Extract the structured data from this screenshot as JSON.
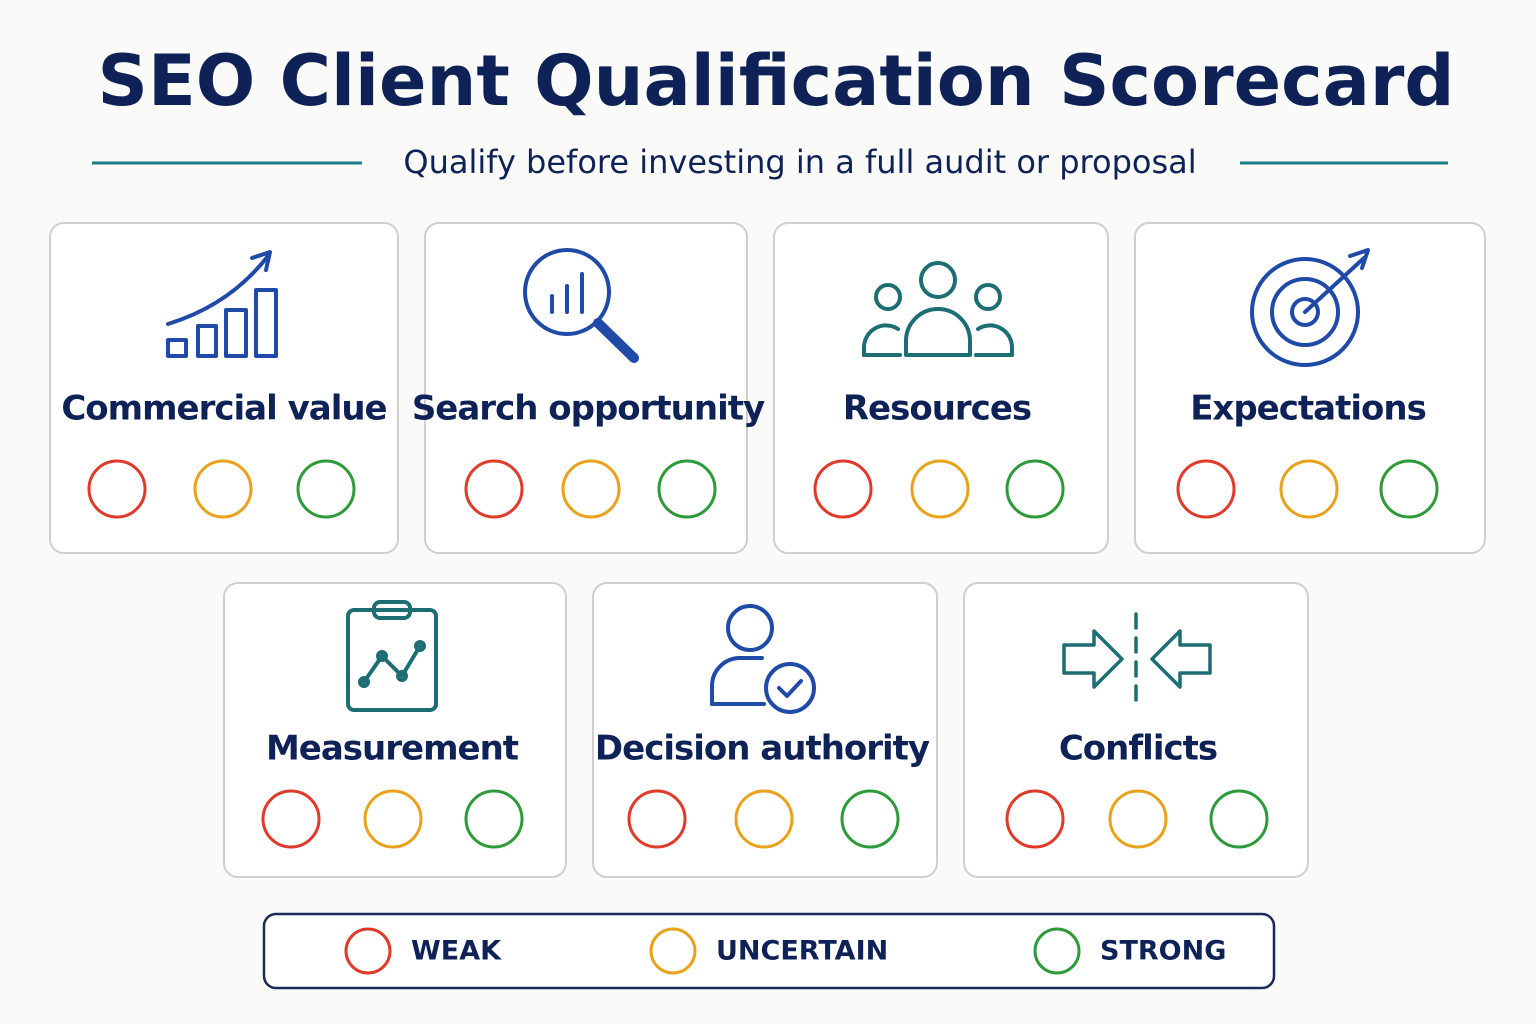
{
  "header": {
    "title": "SEO Client Qualification Scorecard",
    "subtitle": "Qualify before investing in a full audit or proposal"
  },
  "cards": [
    {
      "label": "Commercial value"
    },
    {
      "label": "Search opportunity"
    },
    {
      "label": "Resources"
    },
    {
      "label": "Expectations"
    },
    {
      "label": "Measurement"
    },
    {
      "label": "Decision authority"
    },
    {
      "label": "Conflicts"
    }
  ],
  "legend": {
    "items": [
      {
        "label": "WEAK",
        "color": "#e03a2a"
      },
      {
        "label": "UNCERTAIN",
        "color": "#e8a21c"
      },
      {
        "label": "STRONG",
        "color": "#2f9a3a"
      }
    ]
  }
}
